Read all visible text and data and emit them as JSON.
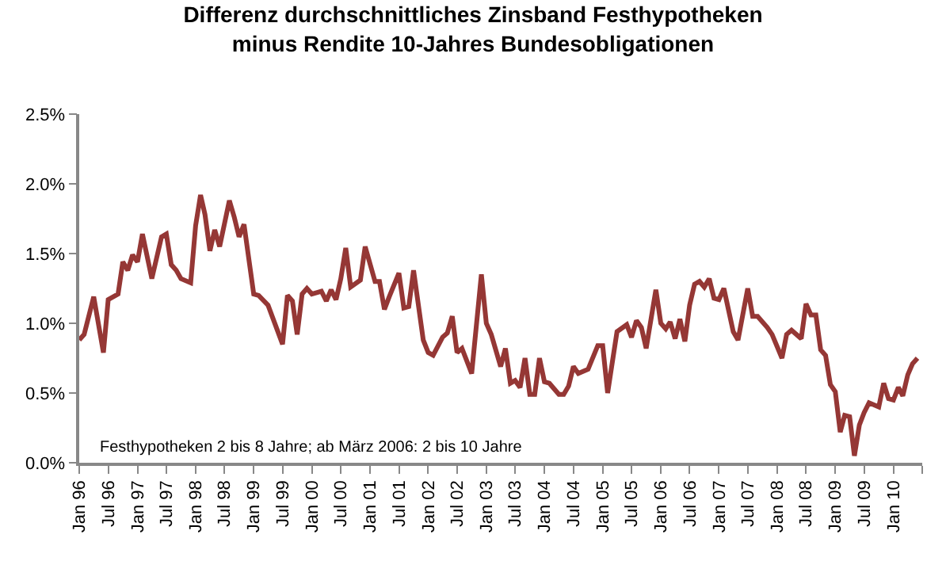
{
  "chart_data": {
    "type": "line",
    "title": "Differenz durchschnittliches Zinsband Festhypotheken\nminus Rendite 10-Jahres Bundesobligationen",
    "x": [
      "1996-01",
      "1996-02",
      "1996-04",
      "1996-06",
      "1996-07",
      "1996-09",
      "1996-10",
      "1996-11",
      "1996-12",
      "1997-01",
      "1997-02",
      "1997-04",
      "1997-06",
      "1997-07",
      "1997-08",
      "1997-09",
      "1997-10",
      "1997-12",
      "1998-01",
      "1998-02",
      "1998-03",
      "1998-04",
      "1998-05",
      "1998-06",
      "1998-08",
      "1998-09",
      "1998-10",
      "1998-11",
      "1999-01",
      "1999-02",
      "1999-04",
      "1999-07",
      "1999-08",
      "1999-09",
      "1999-10",
      "1999-11",
      "1999-12",
      "2000-01",
      "2000-03",
      "2000-04",
      "2000-05",
      "2000-06",
      "2000-07",
      "2000-08",
      "2000-09",
      "2000-11",
      "2000-12",
      "2001-02",
      "2001-03",
      "2001-04",
      "2001-05",
      "2001-07",
      "2001-08",
      "2001-09",
      "2001-10",
      "2001-12",
      "2002-01",
      "2002-02",
      "2002-04",
      "2002-05",
      "2002-06",
      "2002-07",
      "2002-08",
      "2002-10",
      "2002-12",
      "2003-01",
      "2003-02",
      "2003-04",
      "2003-05",
      "2003-06",
      "2003-07",
      "2003-08",
      "2003-09",
      "2003-10",
      "2003-11",
      "2003-12",
      "2004-01",
      "2004-02",
      "2004-04",
      "2004-05",
      "2004-06",
      "2004-07",
      "2004-08",
      "2004-10",
      "2004-12",
      "2005-01",
      "2005-02",
      "2005-03",
      "2005-04",
      "2005-06",
      "2005-07",
      "2005-08",
      "2005-09",
      "2005-10",
      "2005-12",
      "2006-01",
      "2006-02",
      "2006-03",
      "2006-04",
      "2006-05",
      "2006-06",
      "2006-07",
      "2006-08",
      "2006-09",
      "2006-10",
      "2006-11",
      "2006-12",
      "2007-01",
      "2007-02",
      "2007-04",
      "2007-05",
      "2007-07",
      "2007-08",
      "2007-09",
      "2007-11",
      "2007-12",
      "2008-02",
      "2008-03",
      "2008-04",
      "2008-06",
      "2008-07",
      "2008-08",
      "2008-09",
      "2008-10",
      "2008-11",
      "2008-12",
      "2009-01",
      "2009-02",
      "2009-03",
      "2009-04",
      "2009-05",
      "2009-06",
      "2009-07",
      "2009-08",
      "2009-10",
      "2009-11",
      "2009-12",
      "2010-01",
      "2010-02",
      "2010-03",
      "2010-04",
      "2010-05",
      "2010-06"
    ],
    "series": [
      {
        "color": "#953735",
        "values": [
          0.88,
          0.92,
          1.19,
          0.79,
          1.17,
          1.21,
          1.44,
          1.38,
          1.49,
          1.44,
          1.64,
          1.32,
          1.62,
          1.64,
          1.42,
          1.38,
          1.32,
          1.29,
          1.7,
          1.92,
          1.78,
          1.52,
          1.67,
          1.55,
          1.88,
          1.76,
          1.62,
          1.71,
          1.21,
          1.2,
          1.13,
          0.85,
          1.2,
          1.16,
          0.92,
          1.21,
          1.25,
          1.21,
          1.23,
          1.16,
          1.24,
          1.17,
          1.32,
          1.54,
          1.26,
          1.31,
          1.55,
          1.3,
          1.3,
          1.1,
          1.19,
          1.36,
          1.11,
          1.12,
          1.38,
          0.88,
          0.79,
          0.77,
          0.9,
          0.93,
          1.05,
          0.79,
          0.82,
          0.64,
          1.35,
          1.0,
          0.92,
          0.69,
          0.82,
          0.57,
          0.59,
          0.54,
          0.75,
          0.49,
          0.49,
          0.75,
          0.58,
          0.57,
          0.49,
          0.49,
          0.55,
          0.69,
          0.64,
          0.67,
          0.84,
          0.84,
          0.5,
          0.71,
          0.94,
          0.99,
          0.9,
          1.02,
          0.97,
          0.82,
          1.24,
          1.0,
          0.96,
          1.01,
          0.89,
          1.03,
          0.87,
          1.13,
          1.28,
          1.3,
          1.26,
          1.32,
          1.18,
          1.17,
          1.25,
          0.94,
          0.88,
          1.25,
          1.05,
          1.05,
          0.97,
          0.92,
          0.75,
          0.92,
          0.95,
          0.89,
          1.14,
          1.06,
          1.06,
          0.81,
          0.77,
          0.56,
          0.51,
          0.22,
          0.34,
          0.33,
          0.05,
          0.27,
          0.36,
          0.43,
          0.4,
          0.57,
          0.46,
          0.45,
          0.54,
          0.48,
          0.63,
          0.71,
          0.75
        ]
      }
    ],
    "xlim": [
      "1996-01",
      "2010-07"
    ],
    "xticks": [
      {
        "value": "1996-01",
        "label": "Jan 96"
      },
      {
        "value": "1996-07",
        "label": "Jul 96"
      },
      {
        "value": "1997-01",
        "label": "Jan 97"
      },
      {
        "value": "1997-07",
        "label": "Jul 97"
      },
      {
        "value": "1998-01",
        "label": "Jan 98"
      },
      {
        "value": "1998-07",
        "label": "Jul 98"
      },
      {
        "value": "1999-01",
        "label": "Jan 99"
      },
      {
        "value": "1999-07",
        "label": "Jul 99"
      },
      {
        "value": "2000-01",
        "label": "Jan 00"
      },
      {
        "value": "2000-07",
        "label": "Jul 00"
      },
      {
        "value": "2001-01",
        "label": "Jan 01"
      },
      {
        "value": "2001-07",
        "label": "Jul 01"
      },
      {
        "value": "2002-01",
        "label": "Jan 02"
      },
      {
        "value": "2002-07",
        "label": "Jul 02"
      },
      {
        "value": "2003-01",
        "label": "Jan 03"
      },
      {
        "value": "2003-07",
        "label": "Jul 03"
      },
      {
        "value": "2004-01",
        "label": "Jan 04"
      },
      {
        "value": "2004-07",
        "label": "Jul 04"
      },
      {
        "value": "2005-01",
        "label": "Jan 05"
      },
      {
        "value": "2005-07",
        "label": "Jul 05"
      },
      {
        "value": "2006-01",
        "label": "Jan 06"
      },
      {
        "value": "2006-07",
        "label": "Jul 06"
      },
      {
        "value": "2007-01",
        "label": "Jan 07"
      },
      {
        "value": "2007-07",
        "label": "Jul 07"
      },
      {
        "value": "2008-01",
        "label": "Jan 08"
      },
      {
        "value": "2008-07",
        "label": "Jul 08"
      },
      {
        "value": "2009-01",
        "label": "Jan 09"
      },
      {
        "value": "2009-07",
        "label": "Jul 09"
      },
      {
        "value": "2010-01",
        "label": "Jan 10"
      },
      {
        "value": "2010-07",
        "label": null
      }
    ],
    "ylim": [
      0,
      2.5
    ],
    "yticks": [
      {
        "value": 0,
        "label": "0.0%"
      },
      {
        "value": 0.5,
        "label": "0.5%"
      },
      {
        "value": 1,
        "label": "1.0%"
      },
      {
        "value": 1.5,
        "label": "1.5%"
      },
      {
        "value": 2,
        "label": "2.0%"
      },
      {
        "value": 2.5,
        "label": "2.5%"
      }
    ],
    "annotations": [
      "Festhypotheken 2 bis 8 Jahre; ab März 2006: 2 bis 10 Jahre"
    ],
    "marker": "none",
    "line_style": "solid"
  }
}
